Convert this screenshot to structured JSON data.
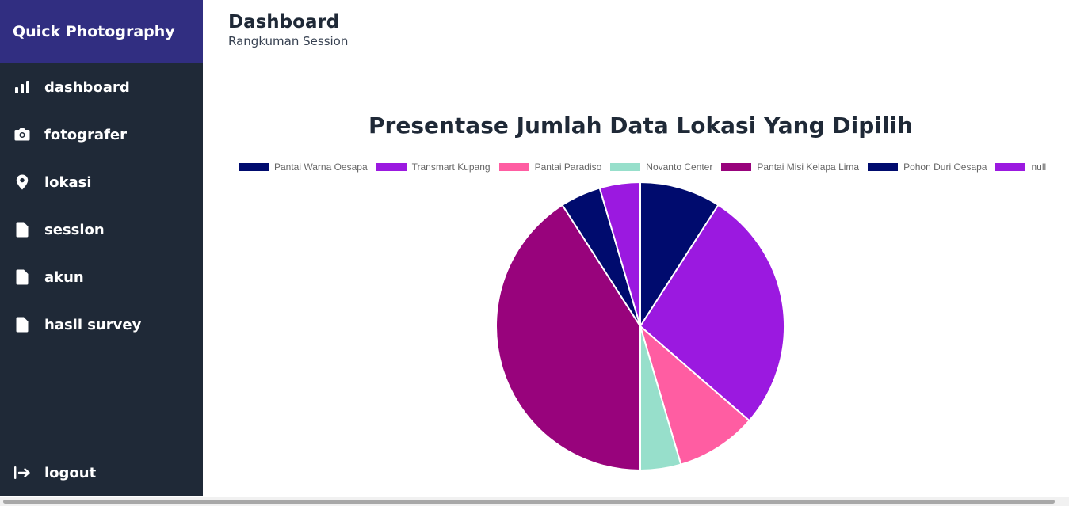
{
  "brand": "Quick Photography",
  "nav": [
    {
      "label": "dashboard",
      "icon": "bar-chart-icon"
    },
    {
      "label": "fotografer",
      "icon": "camera-icon"
    },
    {
      "label": "lokasi",
      "icon": "map-pin-icon"
    },
    {
      "label": "session",
      "icon": "document-icon"
    },
    {
      "label": "akun",
      "icon": "document-icon"
    },
    {
      "label": "hasil survey",
      "icon": "document-icon"
    }
  ],
  "logout": {
    "label": "logout",
    "icon": "logout-icon"
  },
  "header": {
    "title": "Dashboard",
    "subtitle": "Rangkuman Session"
  },
  "chart_data": {
    "type": "pie",
    "title": "Presentase Jumlah Data Lokasi Yang Dipilih",
    "legend_position": "top",
    "categories": [
      "Pantai Warna Oesapa",
      "Transmart Kupang",
      "Pantai Paradiso",
      "Novanto Center",
      "Pantai Misi Kelapa Lima",
      "Pohon Duri Oesapa",
      "null"
    ],
    "values": [
      2,
      6,
      2,
      1,
      9,
      1,
      1
    ],
    "colors": [
      "#000b6e",
      "#9b19e0",
      "#ff5da2",
      "#97dfcb",
      "#98037c",
      "#000b6e",
      "#9b19e0"
    ]
  },
  "colors": {
    "sidebar": "#1f2937",
    "brand_bg": "#312e81"
  }
}
